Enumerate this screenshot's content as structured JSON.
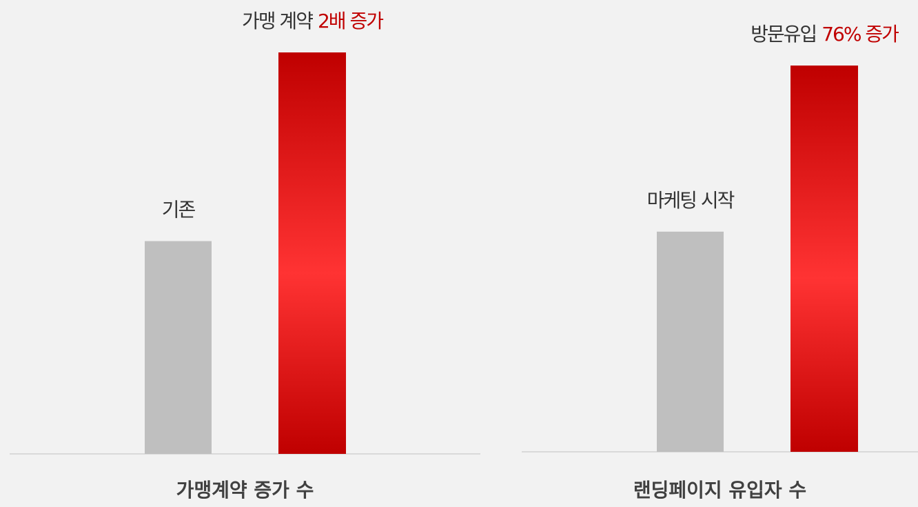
{
  "chart_data": [
    {
      "type": "bar",
      "title": "가맹계약 증가 수",
      "bar_labels": [
        [
          "기존"
        ],
        [
          "가맹 계약",
          "2배 증가"
        ]
      ],
      "label_colors": [
        "#333333",
        "#c00000"
      ],
      "values": [
        53,
        100
      ],
      "colors": [
        "#bfbfbf",
        "#ff3333"
      ],
      "gradient_edge": "#bf0000",
      "ylim": [
        0,
        100
      ]
    },
    {
      "type": "bar",
      "title": "랜딩페이지 유입자 수",
      "bar_labels": [
        [
          "마케팅 시작"
        ],
        [
          "방문유입",
          "76% 증가"
        ]
      ],
      "label_colors": [
        "#333333",
        "#c00000"
      ],
      "values": [
        57,
        100
      ],
      "colors": [
        "#bfbfbf",
        "#ff3333"
      ],
      "gradient_edge": "#bf0000",
      "ylim": [
        0,
        100
      ]
    }
  ]
}
